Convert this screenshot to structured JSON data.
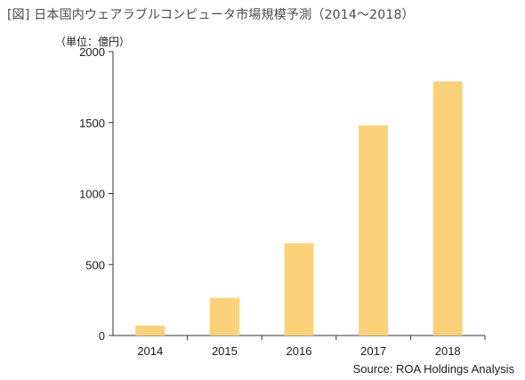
{
  "title": "[図] 日本国内ウェアラブルコンピュータ市場規模予測（2014～2018）",
  "unit_label": "（単位：億円）",
  "source": "Source: ROA Holdings Analysis",
  "colors": {
    "bar": "#fbd27a",
    "axis": "#333333"
  },
  "chart_data": {
    "type": "bar",
    "categories": [
      "2014",
      "2015",
      "2016",
      "2017",
      "2018"
    ],
    "values": [
      70,
      265,
      650,
      1480,
      1790
    ],
    "ylim": [
      0,
      2000
    ],
    "yticks": [
      0,
      500,
      1000,
      1500,
      2000
    ],
    "grid": false,
    "legend": "none"
  }
}
